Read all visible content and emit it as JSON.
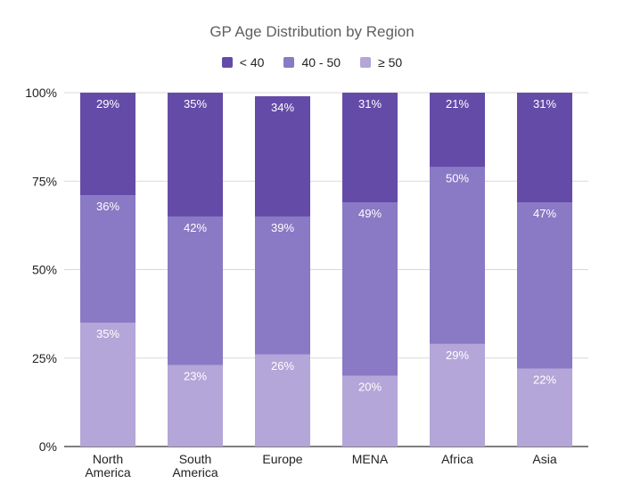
{
  "chart_data": {
    "type": "bar",
    "stacked": true,
    "normalized_percent": true,
    "title": "GP Age Distribution by Region",
    "categories": [
      "North America",
      "South America",
      "Europe",
      "MENA",
      "Africa",
      "Asia"
    ],
    "series": [
      {
        "name": "≥ 50",
        "values": [
          35,
          23,
          26,
          20,
          29,
          22
        ],
        "color": "#b4a6d8",
        "stack_order": 0
      },
      {
        "name": "40 - 50",
        "values": [
          36,
          42,
          39,
          49,
          50,
          47
        ],
        "color": "#8a79c4",
        "stack_order": 1
      },
      {
        "name": "< 40",
        "values": [
          29,
          35,
          34,
          31,
          21,
          31
        ],
        "color": "#654ba8",
        "stack_order": 2
      }
    ],
    "legend_order": [
      "< 40",
      "40 - 50",
      "≥ 50"
    ],
    "legend_position": "top",
    "ylim": [
      0,
      100
    ],
    "yticks": [
      "0%",
      "25%",
      "50%",
      "75%",
      "100%"
    ],
    "grid": true,
    "xlabel": "",
    "ylabel": ""
  }
}
